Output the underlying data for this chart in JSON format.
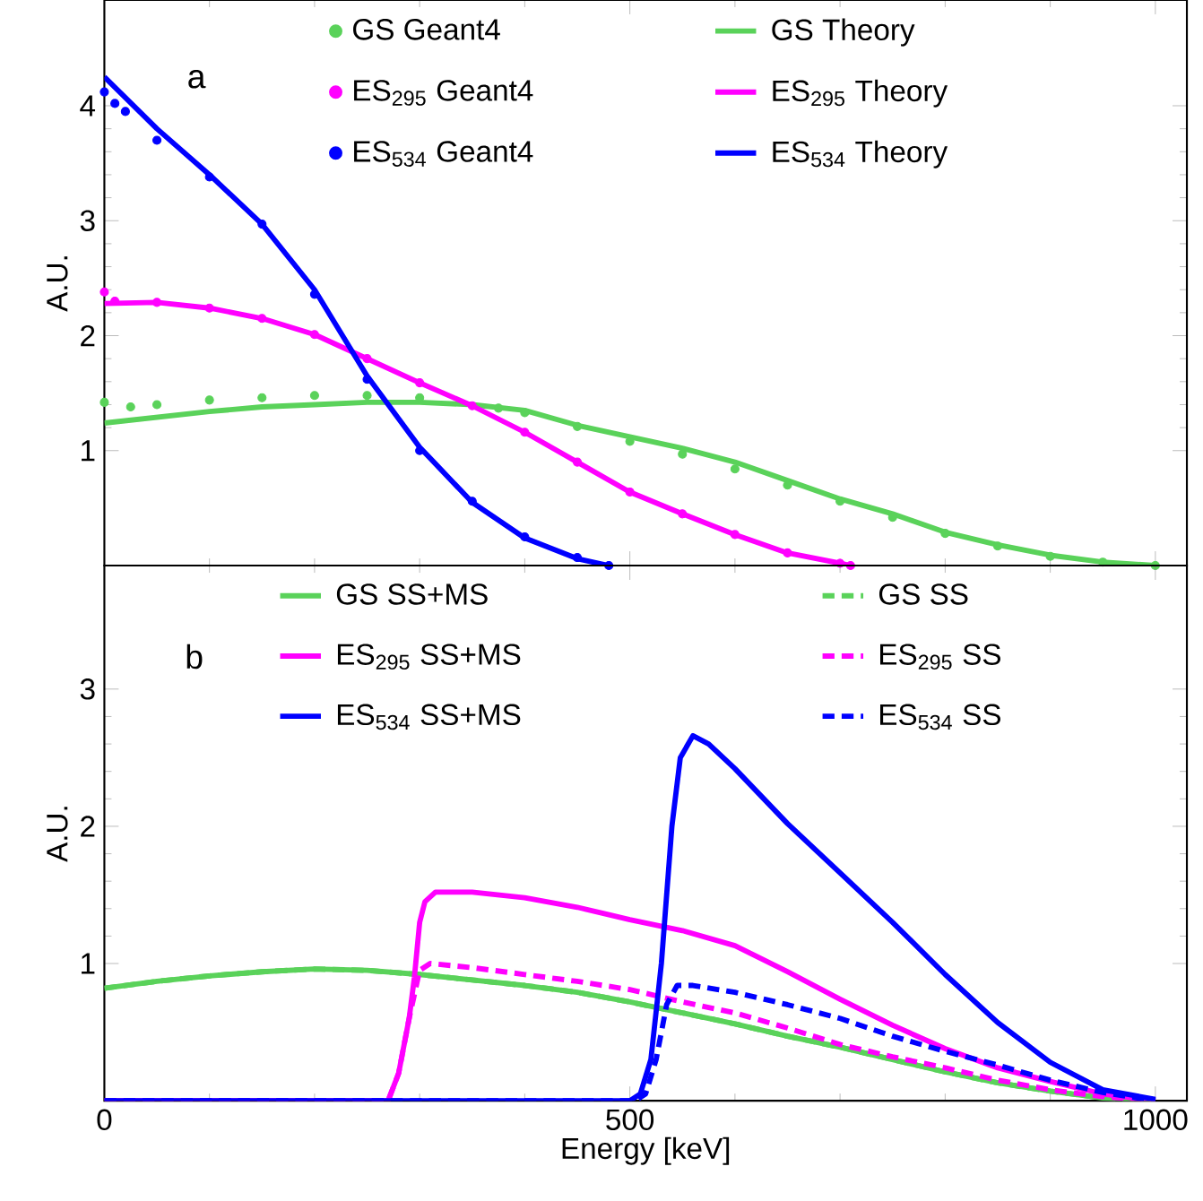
{
  "chart_data": [
    {
      "type": "line",
      "ylabel": "A.U.",
      "annotations": [
        "a"
      ],
      "xlim": [
        0,
        1030
      ],
      "ylim": [
        0,
        4.92
      ],
      "xticks": [
        0,
        500,
        1000
      ],
      "yticks": [
        1,
        2,
        3,
        4
      ],
      "tick_labels": "y",
      "legend": "top",
      "series": [
        {
          "name": "GS Geant4",
          "type": "scatter",
          "marker": "circle",
          "color": "#5ad25a",
          "x": [
            0,
            25,
            50,
            100,
            150,
            200,
            250,
            300,
            375,
            400,
            450,
            500,
            550,
            600,
            650,
            700,
            750,
            800,
            850,
            900,
            950,
            1000
          ],
          "values": [
            1.42,
            1.38,
            1.4,
            1.44,
            1.46,
            1.48,
            1.48,
            1.46,
            1.37,
            1.33,
            1.21,
            1.08,
            0.97,
            0.84,
            0.7,
            0.56,
            0.42,
            0.28,
            0.17,
            0.08,
            0.03,
            0.0
          ]
        },
        {
          "name": "GS Theory",
          "marker": "none",
          "color": "#5ad25a",
          "x": [
            0,
            50,
            100,
            150,
            200,
            250,
            300,
            350,
            400,
            450,
            500,
            550,
            600,
            650,
            700,
            750,
            800,
            850,
            900,
            950,
            1000
          ],
          "values": [
            1.24,
            1.29,
            1.34,
            1.38,
            1.4,
            1.42,
            1.42,
            1.4,
            1.35,
            1.22,
            1.12,
            1.02,
            0.9,
            0.74,
            0.58,
            0.45,
            0.29,
            0.18,
            0.09,
            0.03,
            0.0
          ]
        },
        {
          "name": "ES$_{295}$ Geant4",
          "type": "scatter",
          "marker": "circle",
          "color": "#ff00ff",
          "x": [
            0,
            10,
            50,
            100,
            150,
            200,
            250,
            300,
            350,
            400,
            450,
            500,
            550,
            600,
            650,
            700,
            710
          ],
          "values": [
            2.38,
            2.3,
            2.29,
            2.24,
            2.15,
            2.01,
            1.8,
            1.59,
            1.39,
            1.16,
            0.9,
            0.64,
            0.45,
            0.27,
            0.11,
            0.02,
            0.0
          ]
        },
        {
          "name": "ES$_{295}$ Theory",
          "marker": "none",
          "color": "#ff00ff",
          "x": [
            0,
            50,
            100,
            150,
            200,
            250,
            300,
            350,
            400,
            450,
            500,
            550,
            600,
            650,
            700,
            710
          ],
          "values": [
            2.28,
            2.29,
            2.24,
            2.15,
            2.01,
            1.8,
            1.59,
            1.39,
            1.16,
            0.9,
            0.64,
            0.45,
            0.27,
            0.11,
            0.02,
            0.0
          ]
        },
        {
          "name": "ES$_{534}$ Geant4",
          "type": "scatter",
          "marker": "circle",
          "color": "#0000ff",
          "x": [
            0,
            10,
            20,
            50,
            100,
            150,
            200,
            250,
            300,
            350,
            400,
            450,
            480
          ],
          "values": [
            4.12,
            4.02,
            3.95,
            3.7,
            3.38,
            2.97,
            2.36,
            1.62,
            1.0,
            0.56,
            0.25,
            0.07,
            0.0
          ]
        },
        {
          "name": "ES$_{534}$ Theory",
          "marker": "none",
          "color": "#0000ff",
          "x": [
            0,
            50,
            100,
            150,
            200,
            250,
            300,
            350,
            400,
            450,
            480
          ],
          "values": [
            4.25,
            3.8,
            3.4,
            2.97,
            2.4,
            1.65,
            1.03,
            0.55,
            0.24,
            0.06,
            0.0
          ]
        }
      ]
    },
    {
      "type": "line",
      "xlabel": "Energy [keV]",
      "ylabel": "A.U.",
      "annotations": [
        "b"
      ],
      "xlim": [
        0,
        1030
      ],
      "ylim": [
        0,
        3.9
      ],
      "xticks": [
        0,
        500,
        1000
      ],
      "yticks": [
        1,
        2,
        3
      ],
      "legend": "top",
      "series": [
        {
          "name": "GS SS+MS",
          "color": "#5ad25a",
          "x": [
            0,
            50,
            100,
            150,
            200,
            250,
            300,
            350,
            400,
            450,
            500,
            550,
            600,
            650,
            700,
            750,
            800,
            850,
            900,
            950,
            1000
          ],
          "values": [
            0.82,
            0.87,
            0.91,
            0.94,
            0.96,
            0.95,
            0.92,
            0.88,
            0.84,
            0.79,
            0.72,
            0.64,
            0.56,
            0.47,
            0.39,
            0.3,
            0.21,
            0.13,
            0.07,
            0.02,
            0.0
          ]
        },
        {
          "name": "GS SS",
          "line_style": "dashed",
          "color": "#5ad25a",
          "x": [
            0,
            50,
            100,
            150,
            200,
            250,
            300,
            350,
            400,
            450,
            500,
            550,
            600,
            650,
            700,
            750,
            800,
            850,
            900,
            950,
            1000
          ],
          "values": [
            0.82,
            0.87,
            0.91,
            0.94,
            0.96,
            0.95,
            0.92,
            0.88,
            0.84,
            0.79,
            0.72,
            0.64,
            0.56,
            0.47,
            0.39,
            0.3,
            0.21,
            0.13,
            0.07,
            0.02,
            0.0
          ]
        },
        {
          "name": "ES$_{295}$ SS+MS",
          "color": "#ff00ff",
          "x": [
            0,
            270,
            280,
            290,
            295,
            300,
            305,
            315,
            350,
            400,
            450,
            500,
            550,
            600,
            650,
            700,
            750,
            800,
            850,
            900,
            950,
            1000
          ],
          "values": [
            0.0,
            0.0,
            0.2,
            0.6,
            0.9,
            1.3,
            1.45,
            1.52,
            1.52,
            1.48,
            1.41,
            1.32,
            1.24,
            1.13,
            0.94,
            0.74,
            0.55,
            0.38,
            0.24,
            0.14,
            0.05,
            0.0
          ]
        },
        {
          "name": "ES$_{295}$ SS",
          "line_style": "dashed",
          "color": "#ff00ff",
          "x": [
            0,
            270,
            280,
            290,
            300,
            310,
            350,
            400,
            450,
            500,
            550,
            600,
            650,
            700,
            750,
            800,
            850,
            900,
            950,
            1000
          ],
          "values": [
            0.0,
            0.0,
            0.2,
            0.6,
            0.95,
            1.0,
            0.97,
            0.92,
            0.87,
            0.81,
            0.72,
            0.64,
            0.53,
            0.41,
            0.32,
            0.24,
            0.15,
            0.08,
            0.03,
            0.0
          ]
        },
        {
          "name": "ES$_{534}$ SS+MS",
          "color": "#0000ff",
          "x": [
            0,
            500,
            510,
            520,
            530,
            540,
            548,
            560,
            575,
            600,
            650,
            700,
            750,
            800,
            850,
            900,
            950,
            1000
          ],
          "values": [
            0.0,
            0.0,
            0.05,
            0.3,
            1.0,
            2.0,
            2.5,
            2.66,
            2.6,
            2.42,
            2.02,
            1.66,
            1.3,
            0.92,
            0.57,
            0.28,
            0.08,
            0.01
          ]
        },
        {
          "name": "ES$_{534}$ SS",
          "line_style": "dashed",
          "color": "#0000ff",
          "x": [
            0,
            505,
            515,
            525,
            535,
            545,
            560,
            600,
            650,
            700,
            750,
            800,
            850,
            900,
            950,
            1000
          ],
          "values": [
            0.0,
            0.0,
            0.05,
            0.3,
            0.7,
            0.84,
            0.84,
            0.79,
            0.7,
            0.6,
            0.47,
            0.36,
            0.26,
            0.15,
            0.06,
            0.0
          ]
        }
      ]
    }
  ]
}
